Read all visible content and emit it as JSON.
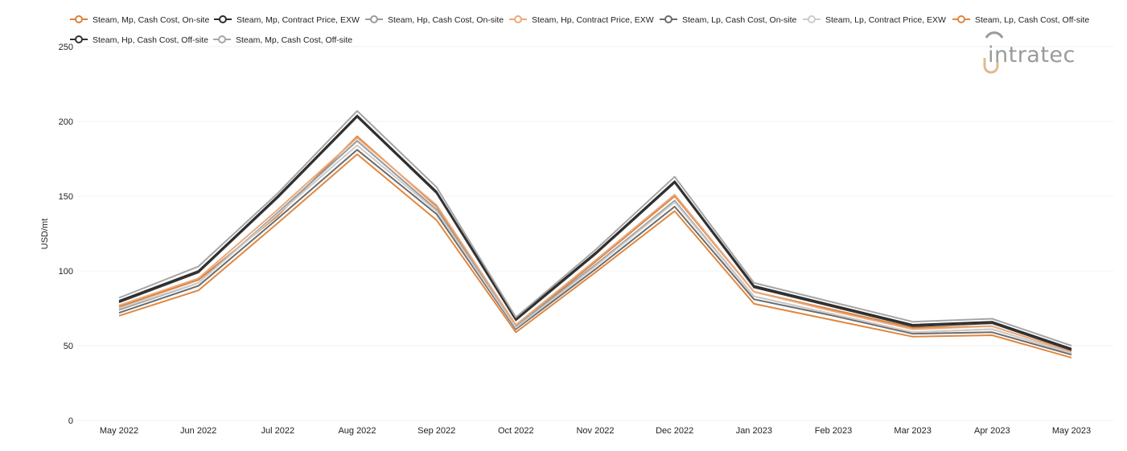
{
  "chart_data": {
    "type": "line",
    "ylabel": "USD/mt",
    "ylim": [
      0,
      250
    ],
    "yticks": [
      0,
      50,
      100,
      150,
      200,
      250
    ],
    "grid": true,
    "legend_placement": "top",
    "categories": [
      "May 2022",
      "Jun 2022",
      "Jul 2022",
      "Aug 2022",
      "Sep 2022",
      "Oct 2022",
      "Nov 2022",
      "Dec 2022",
      "Jan 2023",
      "Feb 2023",
      "Mar 2023",
      "Apr 2023",
      "May 2023"
    ],
    "series": [
      {
        "name": "Steam, Mp, Cash Cost, On-site",
        "color": "#d9823b",
        "values": [
          76,
          94,
          137,
          190,
          143,
          63,
          106,
          150,
          86,
          74,
          62,
          63,
          46
        ]
      },
      {
        "name": "Steam, Mp, Contract Price, EXW",
        "color": "#2b2b2b",
        "values": [
          80,
          100,
          150,
          204,
          153,
          68,
          112,
          160,
          90,
          77,
          64,
          66,
          48
        ]
      },
      {
        "name": "Steam, Hp, Cash Cost, On-site",
        "color": "#9b9b9b",
        "values": [
          74,
          92,
          139,
          187,
          141,
          63,
          104,
          147,
          83,
          71,
          59,
          61,
          45
        ]
      },
      {
        "name": "Steam, Hp, Contract Price, EXW",
        "color": "#eca87a",
        "values": [
          77,
          95,
          141,
          189,
          144,
          64,
          107,
          151,
          86,
          73,
          61,
          63,
          46
        ]
      },
      {
        "name": "Steam, Lp, Cash Cost, On-site",
        "color": "#6b6b6b",
        "values": [
          72,
          90,
          135,
          181,
          138,
          61,
          101,
          143,
          81,
          70,
          58,
          59,
          44
        ]
      },
      {
        "name": "Steam, Lp, Contract Price, EXW",
        "color": "#cccccc",
        "values": [
          75,
          92,
          138,
          184,
          140,
          62,
          103,
          146,
          83,
          71,
          59,
          61,
          45
        ]
      },
      {
        "name": "Steam, Lp, Cash Cost, Off-site",
        "color": "#e0873f",
        "values": [
          70,
          87,
          132,
          178,
          134,
          59,
          99,
          140,
          78,
          67,
          56,
          57,
          42
        ]
      },
      {
        "name": "Steam, Hp, Cash Cost, Off-site",
        "color": "#333333",
        "values": [
          79,
          99,
          149,
          203,
          152,
          67,
          111,
          159,
          89,
          76,
          63,
          65,
          47
        ]
      },
      {
        "name": "Steam, Mp, Cash Cost, Off-site",
        "color": "#a6a6a6",
        "values": [
          82,
          103,
          152,
          207,
          156,
          69,
          114,
          163,
          92,
          79,
          66,
          68,
          50
        ]
      }
    ]
  },
  "logo": {
    "text": "intratec",
    "color": "#9a9a9a",
    "accent": "#e2b88f"
  }
}
